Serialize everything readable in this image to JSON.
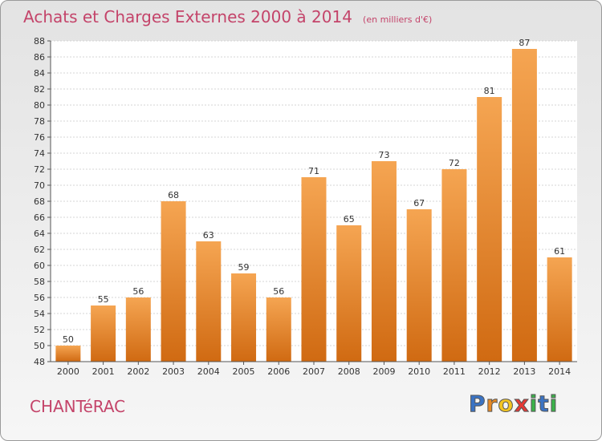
{
  "title": "Achats et Charges Externes 2000 à 2014",
  "unit": "(en milliers d'€)",
  "commune": "CHANTéRAC",
  "logo": {
    "letters": [
      "P",
      "r",
      "o",
      "x",
      "i",
      "t",
      "i"
    ],
    "colors": [
      "#3a73c4",
      "#e88a24",
      "#f3c521",
      "#e53935",
      "#3bb34a",
      "#3a73c4",
      "#3bb34a"
    ]
  },
  "colors": {
    "bar_top": "#f5a552",
    "bar_bottom": "#d06a12",
    "title": "#c4446a"
  },
  "chart_data": {
    "type": "bar",
    "categories": [
      "2000",
      "2001",
      "2002",
      "2003",
      "2004",
      "2005",
      "2006",
      "2007",
      "2008",
      "2009",
      "2010",
      "2011",
      "2012",
      "2013",
      "2014"
    ],
    "values": [
      50,
      55,
      56,
      68,
      63,
      59,
      56,
      71,
      65,
      73,
      67,
      72,
      81,
      87,
      61
    ],
    "ylim": [
      48,
      88
    ],
    "ytick_step": 2,
    "grid": true
  }
}
